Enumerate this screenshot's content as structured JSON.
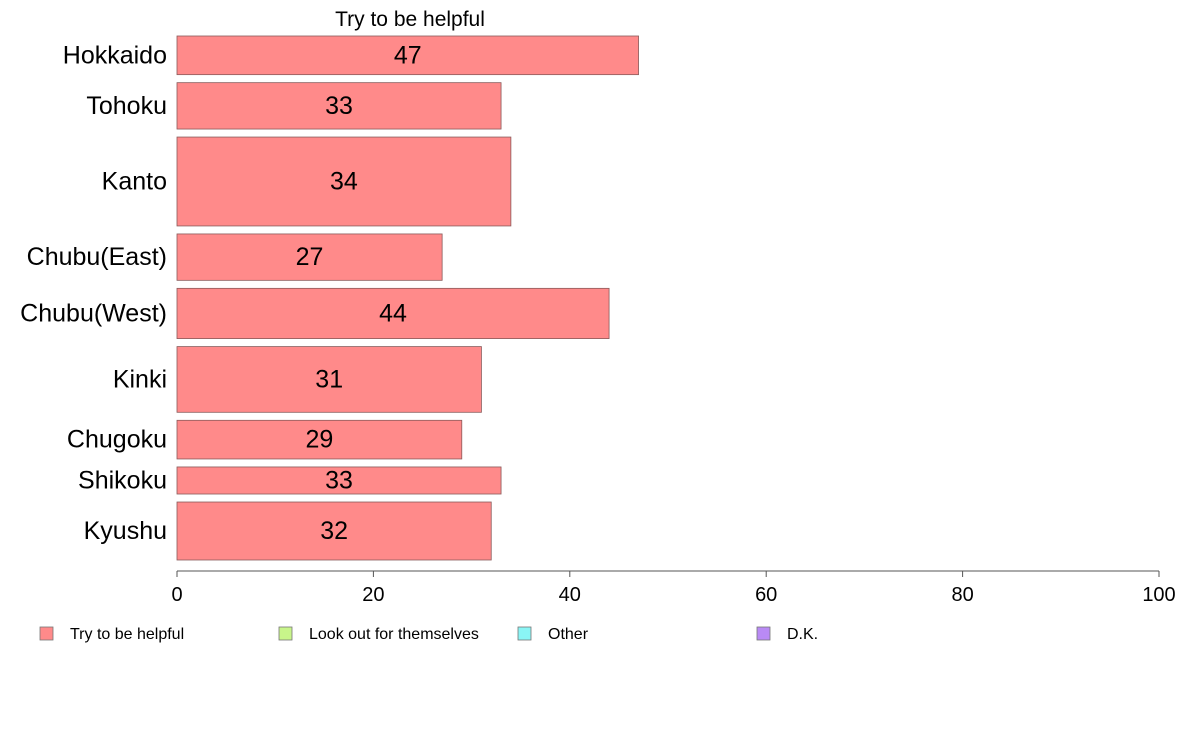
{
  "chart_data": {
    "type": "bar",
    "orientation": "horizontal",
    "title": "Try to be helpful",
    "categories": [
      "Hokkaido",
      "Tohoku",
      "Kanto",
      "Chubu(East)",
      "Chubu(West)",
      "Kinki",
      "Chugoku",
      "Shikoku",
      "Kyushu"
    ],
    "series": [
      {
        "name": "Try to be helpful",
        "values": [
          47,
          33,
          34,
          27,
          44,
          31,
          29,
          33,
          32
        ],
        "color": "#ff8a8a"
      }
    ],
    "relative_widths": [
      1.0,
      1.2,
      2.3,
      1.2,
      1.3,
      1.7,
      1.0,
      0.7,
      1.5
    ],
    "xlim": [
      0,
      100
    ],
    "xticks": [
      0,
      20,
      40,
      60,
      80,
      100
    ],
    "grid": false,
    "legend": {
      "position": "bottom",
      "items": [
        {
          "label": "Try to be helpful",
          "color": "#ff8a8a"
        },
        {
          "label": "Look out for themselves",
          "color": "#c8f58a"
        },
        {
          "label": "Other",
          "color": "#8af5f5"
        },
        {
          "label": "D.K.",
          "color": "#b98af5"
        }
      ]
    }
  }
}
